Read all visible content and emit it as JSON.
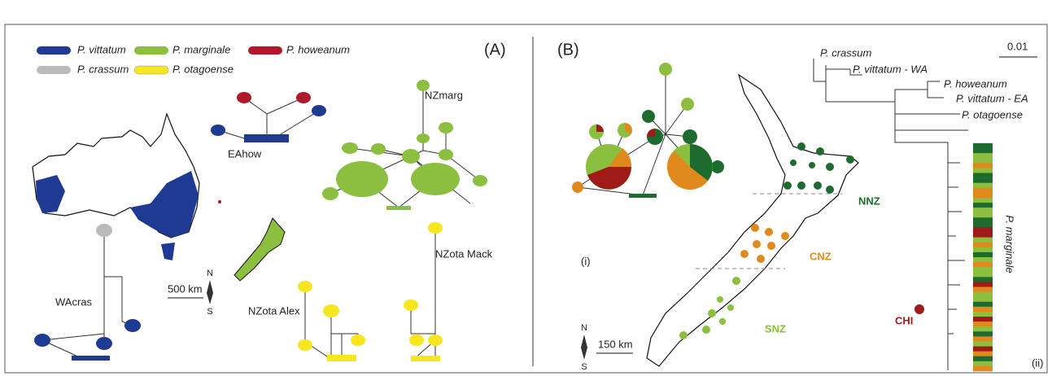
{
  "panel_a": {
    "label": "(A)",
    "legend": [
      "P. vittatum",
      "P. marginale",
      "P. howeanum",
      "P. crassum",
      "P. otagoense"
    ],
    "networks": [
      "EAhow",
      "NZmarg",
      "WAcras",
      "NZota Alex",
      "NZota Mack"
    ],
    "scale_bar": "500 km",
    "north": "N",
    "south": "S"
  },
  "panel_b": {
    "label": "(B)",
    "inset_label": "(i)",
    "tree_label": "(ii)",
    "regions": [
      "NNZ",
      "CNZ",
      "SNZ",
      "CHI"
    ],
    "scale_bar": "150 km",
    "north": "N",
    "south": "S",
    "tree_scale": "0.01",
    "taxa": [
      "P. crassum",
      "P. vittatum - WA",
      "P. howeanum",
      "P. vittatum - EA",
      "P. otagoense"
    ],
    "clade": "P. marginale"
  }
}
